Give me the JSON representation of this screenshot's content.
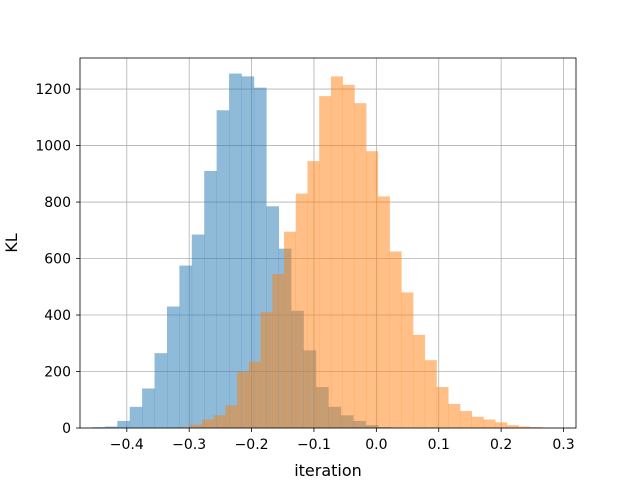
{
  "chart_data": {
    "type": "bar",
    "title": "",
    "xlabel": "iteration",
    "ylabel": "KL",
    "xlim": [
      -0.475,
      0.32
    ],
    "ylim": [
      0,
      1310
    ],
    "grid": true,
    "xticks": [
      -0.4,
      -0.3,
      -0.2,
      -0.1,
      0.0,
      0.1,
      0.2,
      0.3
    ],
    "xtick_labels": [
      "−0.4",
      "−0.3",
      "−0.2",
      "−0.1",
      "0.0",
      "0.1",
      "0.2",
      "0.3"
    ],
    "yticks": [
      0,
      200,
      400,
      600,
      800,
      1000,
      1200
    ],
    "ytick_labels": [
      "0",
      "200",
      "400",
      "600",
      "800",
      "1000",
      "1200"
    ],
    "colors": {
      "series_a": "#1f77b4",
      "series_b": "#ff7f0e",
      "grid": "#b0b0b0",
      "axis": "#000000"
    },
    "series": [
      {
        "color": "#1f77b4",
        "opacity": 0.5,
        "bin_edges": [
          -0.455,
          -0.4351,
          -0.4152,
          -0.3953,
          -0.3754,
          -0.3555,
          -0.3356,
          -0.3157,
          -0.2958,
          -0.2759,
          -0.256,
          -0.2361,
          -0.2162,
          -0.1963,
          -0.1764,
          -0.1565,
          -0.1366,
          -0.1167,
          -0.0968,
          -0.0769,
          -0.057,
          -0.0371,
          -0.0172,
          0.0027,
          0.0226,
          0.0425,
          0.0624
        ],
        "counts": [
          3,
          5,
          25,
          75,
          140,
          265,
          430,
          575,
          685,
          910,
          1125,
          1255,
          1245,
          1205,
          785,
          635,
          415,
          275,
          145,
          75,
          45,
          25,
          10,
          3,
          1,
          1
        ]
      },
      {
        "color": "#ff7f0e",
        "opacity": 0.5,
        "bin_edges": [
          -0.336,
          -0.3172,
          -0.2984,
          -0.2796,
          -0.2608,
          -0.242,
          -0.2232,
          -0.2044,
          -0.1856,
          -0.1668,
          -0.148,
          -0.1292,
          -0.1104,
          -0.0916,
          -0.0728,
          -0.054,
          -0.0352,
          -0.0164,
          0.0024,
          0.0212,
          0.04,
          0.0588,
          0.0776,
          0.0964,
          0.1152,
          0.134,
          0.1528,
          0.1716,
          0.1904,
          0.2092,
          0.228,
          0.2468,
          0.2656,
          0.2844,
          0.3032
        ],
        "counts": [
          1,
          3,
          12,
          30,
          45,
          80,
          200,
          235,
          410,
          545,
          695,
          830,
          945,
          1175,
          1245,
          1215,
          1150,
          980,
          820,
          625,
          480,
          330,
          240,
          145,
          85,
          60,
          40,
          30,
          20,
          10,
          5,
          3,
          1,
          1
        ]
      }
    ]
  }
}
